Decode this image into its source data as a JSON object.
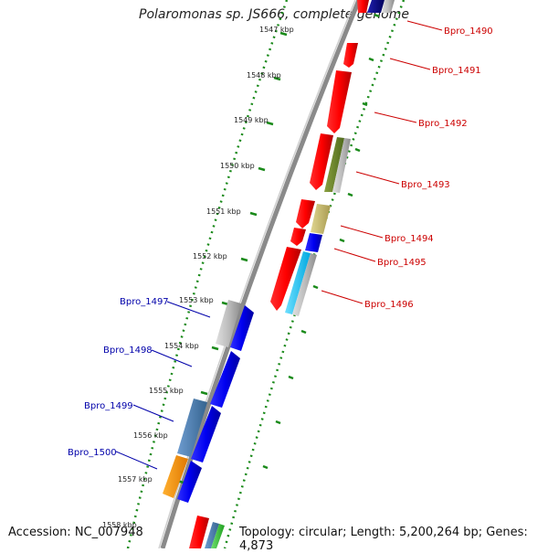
{
  "title": "Polaromonas sp. JS666, complete genome",
  "footer": {
    "accession": "Accession: NC_007948",
    "topology": "Topology: circular; Length: 5,200,264 bp; Genes: 4,873"
  },
  "colors": {
    "right_label": "#cc0000",
    "left_label": "#0000aa",
    "backbone": "#8a8a8a",
    "ruler": "#1a8a1a"
  },
  "kbp_ticks": [
    "1547 kbp",
    "1548 kbp",
    "1549 kbp",
    "1550 kbp",
    "1551 kbp",
    "1552 kbp",
    "1553 kbp",
    "1554 kbp",
    "1555 kbp",
    "1556 kbp",
    "1557 kbp",
    "1558 kbp"
  ],
  "gene_labels_right": [
    "Bpro_1490",
    "Bpro_1491",
    "Bpro_1492",
    "Bpro_1493",
    "Bpro_1494",
    "Bpro_1495",
    "Bpro_1496"
  ],
  "gene_labels_left": [
    "Bpro_1497",
    "Bpro_1498",
    "Bpro_1499",
    "Bpro_1500"
  ]
}
